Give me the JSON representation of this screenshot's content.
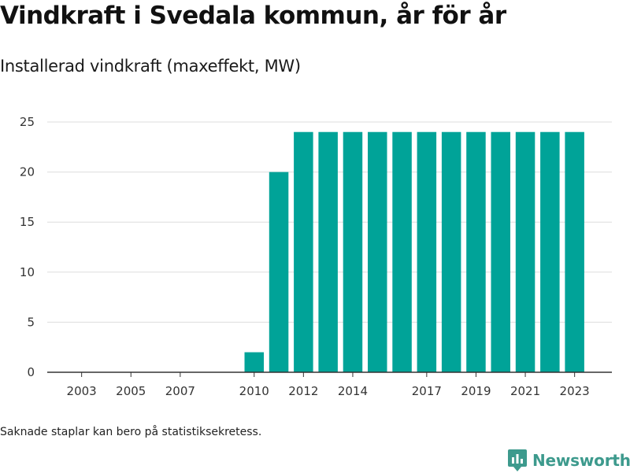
{
  "title": "Vindkraft i Svedala kommun, år för år",
  "subtitle": "Installerad vindkraft (maxeffekt, MW)",
  "footnote": "Saknade staplar kan bero på statistiksekretess.",
  "brand": {
    "name": "Newsworthy",
    "icon": "newsworthy-logo-icon"
  },
  "colors": {
    "bar": "#00a398",
    "grid": "#dddddd",
    "axis": "#333333",
    "brand": "#3d9a8d"
  },
  "chart_data": {
    "type": "bar",
    "categories": [
      "2003",
      "2004",
      "2005",
      "2006",
      "2007",
      "2008",
      "2009",
      "2010",
      "2011",
      "2012",
      "2013",
      "2014",
      "2015",
      "2016",
      "2017",
      "2018",
      "2019",
      "2020",
      "2021",
      "2022",
      "2023"
    ],
    "values": [
      0,
      0,
      0,
      0,
      0,
      0,
      0,
      2,
      20,
      24,
      24,
      24,
      24,
      24,
      24,
      24,
      24,
      24,
      24,
      24,
      24
    ],
    "x_tick_labels": [
      "2003",
      "2005",
      "2007",
      "2010",
      "2012",
      "2014",
      "2017",
      "2019",
      "2021",
      "2023"
    ],
    "y_ticks": [
      0,
      5,
      10,
      15,
      20,
      25
    ],
    "ylim": [
      0,
      25
    ],
    "xlabel": "",
    "ylabel": "",
    "grid": true,
    "legend": "none"
  }
}
